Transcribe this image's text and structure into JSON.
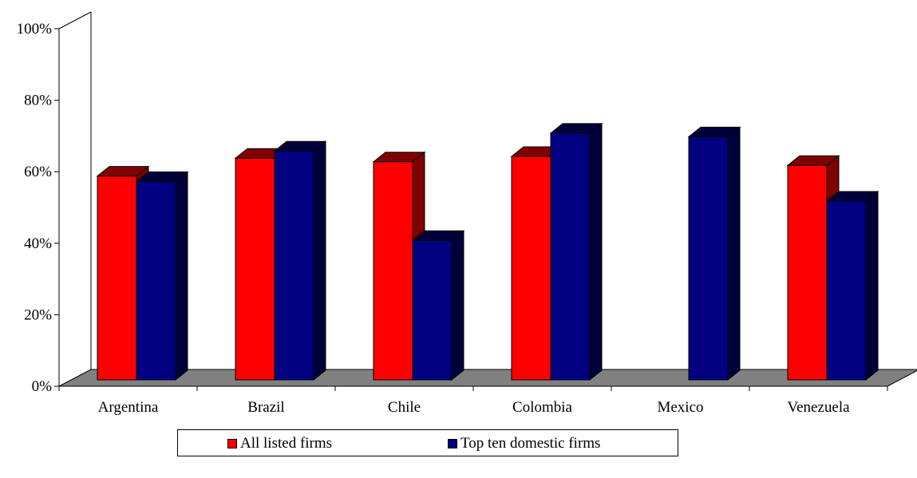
{
  "chart_data": {
    "type": "bar",
    "style": "3d-clustered-column",
    "categories": [
      "Argentina",
      "Brazil",
      "Chile",
      "Colombia",
      "Mexico",
      "Venezuela"
    ],
    "series": [
      {
        "name": "All listed firms",
        "color": "#ff0000",
        "side_color": "#800000",
        "values": [
          57,
          62,
          61,
          62.5,
          null,
          60
        ]
      },
      {
        "name": "Top ten domestic firms",
        "color": "#000080",
        "side_color": "#00003a",
        "values": [
          55.5,
          64,
          39,
          69,
          68,
          50
        ]
      }
    ],
    "ylim": [
      0,
      100
    ],
    "yticks": [
      0,
      20,
      40,
      60,
      80,
      100
    ],
    "ytick_labels": [
      "0%",
      "20%",
      "40%",
      "60%",
      "80%",
      "100%"
    ],
    "floor_color": "#808080",
    "grid": false,
    "legend": "bottom",
    "title": "",
    "xlabel": "",
    "ylabel": ""
  }
}
